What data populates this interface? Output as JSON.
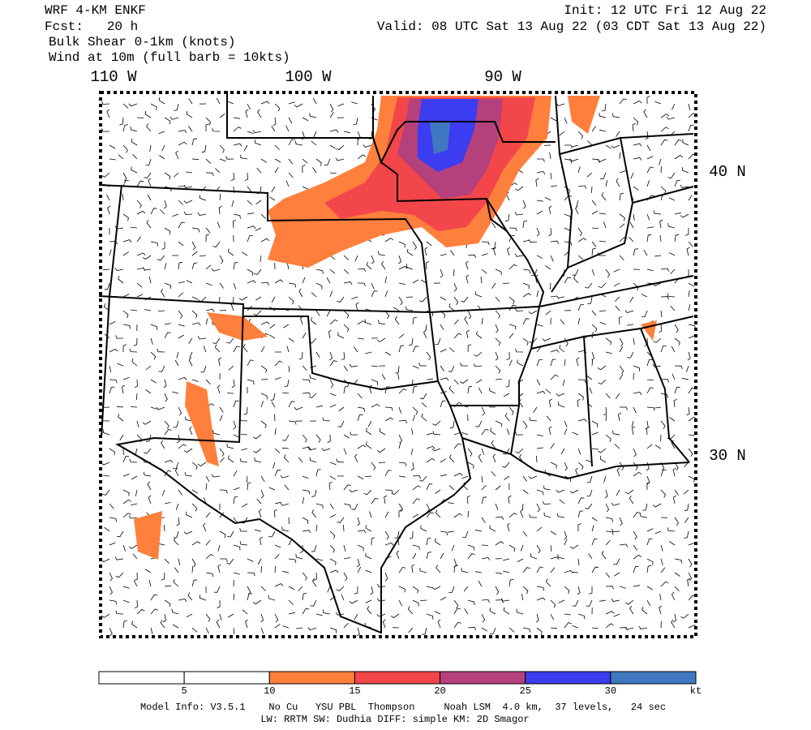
{
  "header": {
    "model": "WRF 4-KM ENKF",
    "fcst": "Fcst:   20 h",
    "init": "Init: 12 UTC Fri 12 Aug 22",
    "valid": "Valid: 08 UTC Sat 13 Aug 22 (03 CDT Sat 13 Aug 22)",
    "field": "Bulk Shear 0-1km (knots)",
    "wind": "Wind at 10m (full barb = 10kts)"
  },
  "map": {
    "lon_labels": [
      "110 W",
      "100 W",
      "90 W"
    ],
    "lat_labels": [
      "40 N",
      "30 N"
    ]
  },
  "colorbar": {
    "colors": [
      "#ffffff",
      "#ffffff",
      "#ff7f3c",
      "#f2464a",
      "#b4407c",
      "#3c3cf0",
      "#3f78c0"
    ],
    "ticks": [
      5,
      10,
      15,
      20,
      25,
      30
    ],
    "unit": "kt"
  },
  "footer": {
    "line1": "Model Info: V3.5.1    No Cu   YSU PBL  Thompson     Noah LSM  4.0 km,  37 levels,   24 sec",
    "line2": "LW: RRTM SW: Dudhia  DIFF: simple KM: 2D Smagor"
  }
}
